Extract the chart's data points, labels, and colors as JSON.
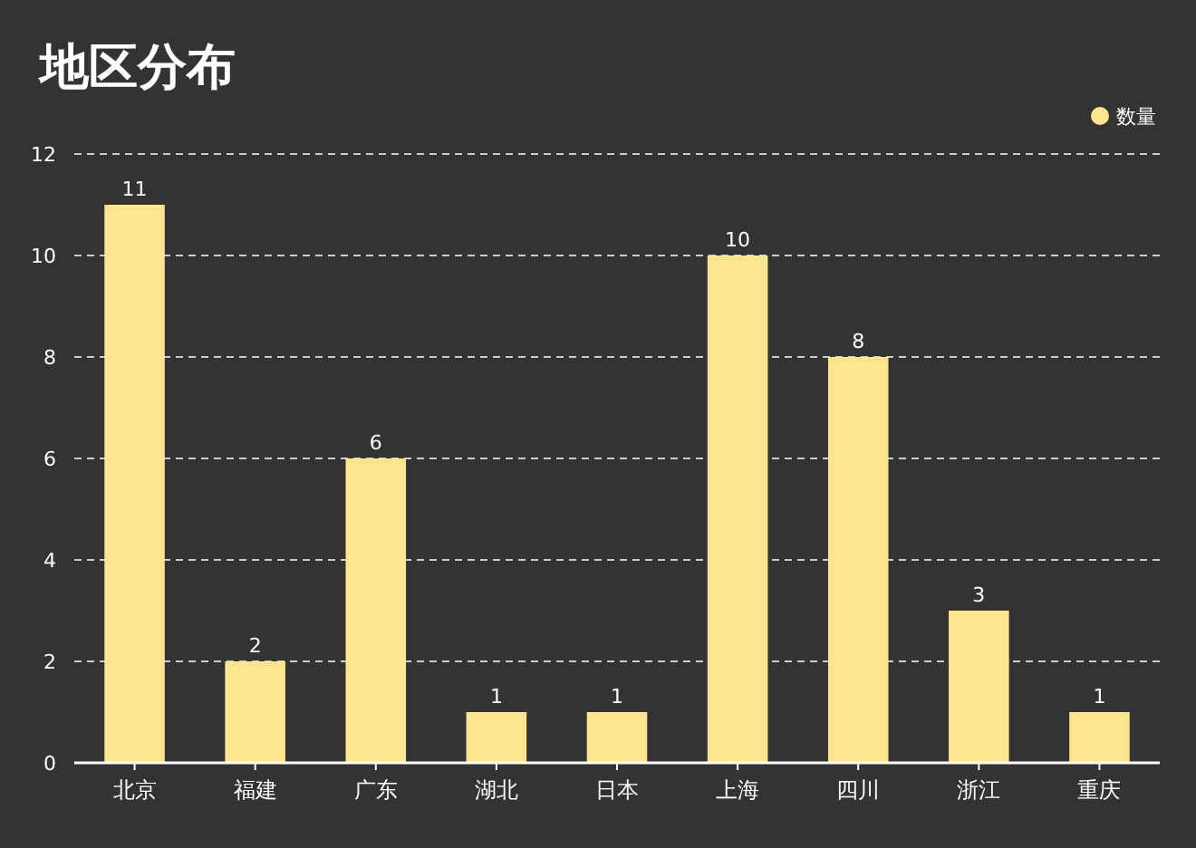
{
  "chart_data": {
    "type": "bar",
    "title": "地区分布",
    "categories": [
      "北京",
      "福建",
      "广东",
      "湖北",
      "日本",
      "上海",
      "四川",
      "浙江",
      "重庆"
    ],
    "series": [
      {
        "name": "数量",
        "color": "#ffe58f",
        "values": [
          11,
          2,
          6,
          1,
          1,
          10,
          8,
          3,
          1
        ]
      }
    ],
    "ylim": [
      0,
      12
    ],
    "yticks": [
      0,
      2,
      4,
      6,
      8,
      10,
      12
    ],
    "grid": "y",
    "legend": "top right",
    "data_labels": true
  }
}
